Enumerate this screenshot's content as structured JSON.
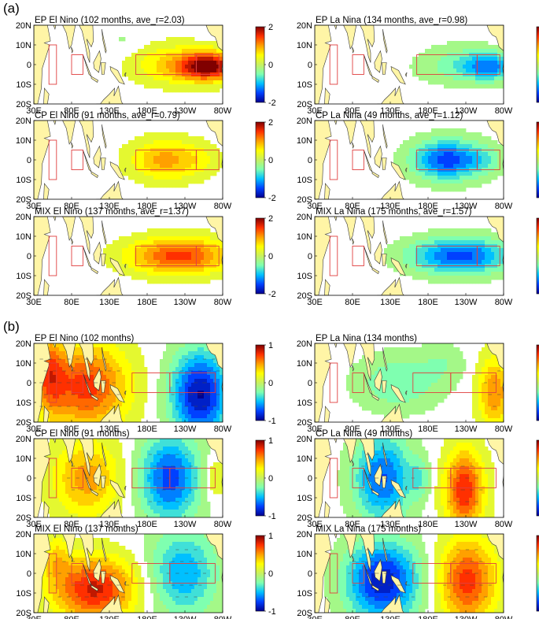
{
  "figure": {
    "section_labels": [
      "(a)",
      "(b)"
    ],
    "tick_labels": {
      "lat": [
        "20N",
        "10N",
        "0",
        "10S",
        "20S"
      ],
      "lon": [
        "30E",
        "80E",
        "130E",
        "180E",
        "130W",
        "80W"
      ]
    },
    "colors": {
      "land": "#fff5a6",
      "coast": "#333333",
      "box": "#e04040",
      "vector": "#444444",
      "colormap": [
        "#00008f",
        "#0040ff",
        "#00c0ff",
        "#7fffb0",
        "#c8f060",
        "#ffff00",
        "#ffa000",
        "#ff3000",
        "#800000"
      ]
    }
  },
  "chart_data": [
    {
      "id": "a1",
      "type": "heatmap",
      "title": "EP El Nino (102 months, ave_r=2.03)",
      "colorbar_ticks": [
        "2",
        "0",
        "-2"
      ],
      "clim": [
        -2,
        2
      ],
      "pattern": "ep",
      "sign": 1,
      "boxes": "a"
    },
    {
      "id": "a2",
      "type": "heatmap",
      "title": "EP La Nina (134 months, ave_r=0.98)",
      "colorbar_ticks": [
        "2",
        "0",
        "-2"
      ],
      "clim": [
        -2,
        2
      ],
      "pattern": "ep",
      "sign": -0.6,
      "boxes": "a"
    },
    {
      "id": "a3",
      "type": "heatmap",
      "title": "CP El Nino (91 months, ave_r=0.79)",
      "colorbar_ticks": [
        "2",
        "0",
        "-2"
      ],
      "clim": [
        -2,
        2
      ],
      "pattern": "cp",
      "sign": 0.55,
      "boxes": "a"
    },
    {
      "id": "a4",
      "type": "heatmap",
      "title": "CP La Nina (49 months, ave_r=1.12)",
      "colorbar_ticks": [
        "2",
        "0",
        "-2"
      ],
      "clim": [
        -2,
        2
      ],
      "pattern": "cp",
      "sign": -0.85,
      "boxes": "a"
    },
    {
      "id": "a5",
      "type": "heatmap",
      "title": "MIX El Nino (137 months, ave_r=1.37)",
      "colorbar_ticks": [
        "2",
        "0",
        "-2"
      ],
      "clim": [
        -2,
        2
      ],
      "pattern": "mix",
      "sign": 1,
      "boxes": "a"
    },
    {
      "id": "a6",
      "type": "heatmap",
      "title": "MIX La Nina (175 months, ave_r=1.57)",
      "colorbar_ticks": [
        "2",
        "0",
        "-2"
      ],
      "clim": [
        -2,
        2
      ],
      "pattern": "mix",
      "sign": -1,
      "boxes": "a"
    },
    {
      "id": "b1",
      "type": "heatmap",
      "title": "EP El Nino (102 months)",
      "colorbar_ticks": [
        "1",
        "0",
        "-1"
      ],
      "clim": [
        -1,
        1
      ],
      "pattern": "b_ep_el",
      "sign": 1,
      "boxes": "b"
    },
    {
      "id": "b2",
      "type": "heatmap",
      "title": "EP La Nina (134 months)",
      "colorbar_ticks": [
        "1",
        "0",
        "-1"
      ],
      "clim": [
        -1,
        1
      ],
      "pattern": "b_ep_la",
      "sign": 1,
      "boxes": "b"
    },
    {
      "id": "b3",
      "type": "heatmap",
      "title": "CP El Nino (91 months)",
      "colorbar_ticks": [
        "1",
        "0",
        "-1"
      ],
      "clim": [
        -1,
        1
      ],
      "pattern": "b_cp_el",
      "sign": 1,
      "boxes": "b"
    },
    {
      "id": "b4",
      "type": "heatmap",
      "title": "CP La Nina (49 months)",
      "colorbar_ticks": [
        "1",
        "0",
        "-1"
      ],
      "clim": [
        -1,
        1
      ],
      "pattern": "b_cp_la",
      "sign": 1,
      "boxes": "b"
    },
    {
      "id": "b5",
      "type": "heatmap",
      "title": "MIX El Nino (137 months)",
      "colorbar_ticks": [
        "1",
        "0",
        "-1"
      ],
      "clim": [
        -1,
        1
      ],
      "pattern": "b_mix_el",
      "sign": 1,
      "boxes": "b"
    },
    {
      "id": "b6",
      "type": "heatmap",
      "title": "MIX La Nina (175 months)",
      "colorbar_ticks": [
        "1",
        "0",
        "-1"
      ],
      "clim": [
        -1,
        1
      ],
      "pattern": "b_mix_la",
      "sign": 1,
      "boxes": "b"
    }
  ]
}
